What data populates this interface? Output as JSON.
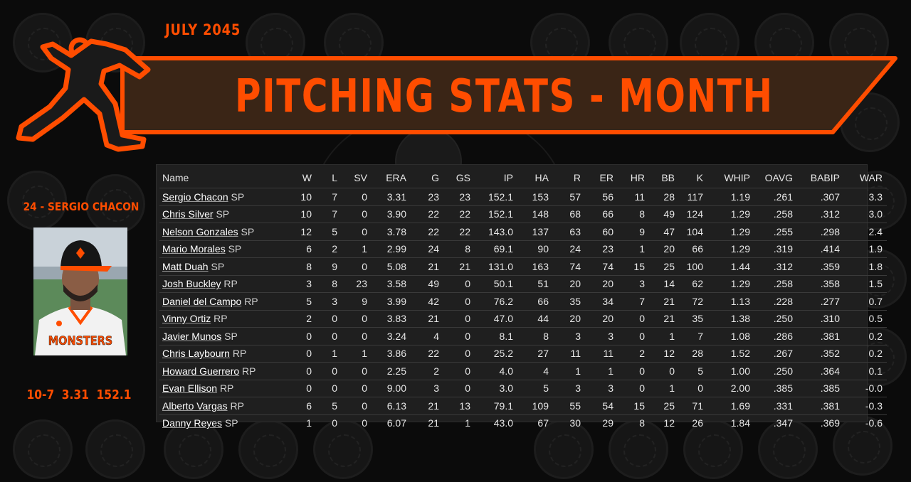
{
  "header": {
    "date_label": "JULY 2045",
    "title": "PITCHING STATS - MONTH"
  },
  "featured_player": {
    "name_label": "24 - SERGIO CHACON",
    "summary": "10-7 3.31 152.1",
    "cap_logo_icon": "monsters-m-logo-icon",
    "jersey_text": "MONSTERS"
  },
  "colors": {
    "accent": "#ff4d00",
    "banner_fill": "#3a2516",
    "panel_bg": "#1f1f1f",
    "text": "#e6e6e6"
  },
  "table": {
    "columns": [
      "Name",
      "W",
      "L",
      "SV",
      "ERA",
      "G",
      "GS",
      "IP",
      "HA",
      "R",
      "ER",
      "HR",
      "BB",
      "K",
      "WHIP",
      "OAVG",
      "BABIP",
      "WAR"
    ],
    "rows": [
      {
        "name": "Sergio Chacon",
        "pos": "SP",
        "stats": [
          "10",
          "7",
          "0",
          "3.31",
          "23",
          "23",
          "152.1",
          "153",
          "57",
          "56",
          "11",
          "28",
          "117",
          "1.19",
          ".261",
          ".307",
          "3.3"
        ]
      },
      {
        "name": "Chris Silver",
        "pos": "SP",
        "stats": [
          "10",
          "7",
          "0",
          "3.90",
          "22",
          "22",
          "152.1",
          "148",
          "68",
          "66",
          "8",
          "49",
          "124",
          "1.29",
          ".258",
          ".312",
          "3.0"
        ]
      },
      {
        "name": "Nelson Gonzales",
        "pos": "SP",
        "stats": [
          "12",
          "5",
          "0",
          "3.78",
          "22",
          "22",
          "143.0",
          "137",
          "63",
          "60",
          "9",
          "47",
          "104",
          "1.29",
          ".255",
          ".298",
          "2.4"
        ]
      },
      {
        "name": "Mario Morales",
        "pos": "SP",
        "stats": [
          "6",
          "2",
          "1",
          "2.99",
          "24",
          "8",
          "69.1",
          "90",
          "24",
          "23",
          "1",
          "20",
          "66",
          "1.29",
          ".319",
          ".414",
          "1.9"
        ]
      },
      {
        "name": "Matt Duah",
        "pos": "SP",
        "stats": [
          "8",
          "9",
          "0",
          "5.08",
          "21",
          "21",
          "131.0",
          "163",
          "74",
          "74",
          "15",
          "25",
          "100",
          "1.44",
          ".312",
          ".359",
          "1.8"
        ]
      },
      {
        "name": "Josh Buckley",
        "pos": "RP",
        "stats": [
          "3",
          "8",
          "23",
          "3.58",
          "49",
          "0",
          "50.1",
          "51",
          "20",
          "20",
          "3",
          "14",
          "62",
          "1.29",
          ".258",
          ".358",
          "1.5"
        ]
      },
      {
        "name": "Daniel del Campo",
        "pos": "RP",
        "stats": [
          "5",
          "3",
          "9",
          "3.99",
          "42",
          "0",
          "76.2",
          "66",
          "35",
          "34",
          "7",
          "21",
          "72",
          "1.13",
          ".228",
          ".277",
          "0.7"
        ]
      },
      {
        "name": "Vinny Ortiz",
        "pos": "RP",
        "stats": [
          "2",
          "0",
          "0",
          "3.83",
          "21",
          "0",
          "47.0",
          "44",
          "20",
          "20",
          "0",
          "21",
          "35",
          "1.38",
          ".250",
          ".310",
          "0.5"
        ]
      },
      {
        "name": "Javier Munos",
        "pos": "SP",
        "stats": [
          "0",
          "0",
          "0",
          "3.24",
          "4",
          "0",
          "8.1",
          "8",
          "3",
          "3",
          "0",
          "1",
          "7",
          "1.08",
          ".286",
          ".381",
          "0.2"
        ]
      },
      {
        "name": "Chris Laybourn",
        "pos": "RP",
        "stats": [
          "0",
          "1",
          "1",
          "3.86",
          "22",
          "0",
          "25.2",
          "27",
          "11",
          "11",
          "2",
          "12",
          "28",
          "1.52",
          ".267",
          ".352",
          "0.2"
        ]
      },
      {
        "name": "Howard Guerrero",
        "pos": "RP",
        "stats": [
          "0",
          "0",
          "0",
          "2.25",
          "2",
          "0",
          "4.0",
          "4",
          "1",
          "1",
          "0",
          "0",
          "5",
          "1.00",
          ".250",
          ".364",
          "0.1"
        ]
      },
      {
        "name": "Evan Ellison",
        "pos": "RP",
        "stats": [
          "0",
          "0",
          "0",
          "9.00",
          "3",
          "0",
          "3.0",
          "5",
          "3",
          "3",
          "0",
          "1",
          "0",
          "2.00",
          ".385",
          ".385",
          "-0.0"
        ]
      },
      {
        "name": "Alberto Vargas",
        "pos": "RP",
        "stats": [
          "6",
          "5",
          "0",
          "6.13",
          "21",
          "13",
          "79.1",
          "109",
          "55",
          "54",
          "15",
          "25",
          "71",
          "1.69",
          ".331",
          ".381",
          "-0.3"
        ]
      },
      {
        "name": "Danny Reyes",
        "pos": "SP",
        "stats": [
          "1",
          "0",
          "0",
          "6.07",
          "21",
          "1",
          "43.0",
          "67",
          "30",
          "29",
          "8",
          "12",
          "26",
          "1.84",
          ".347",
          ".369",
          "-0.6"
        ]
      }
    ]
  }
}
